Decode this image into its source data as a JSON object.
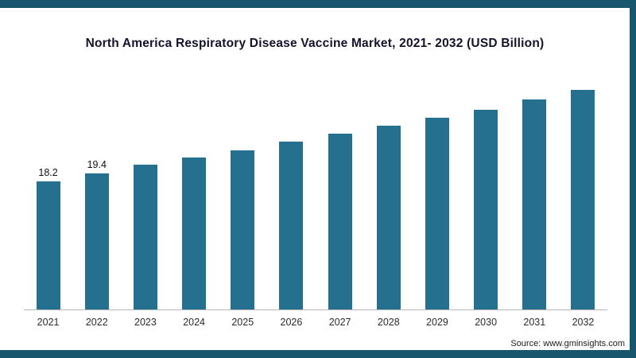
{
  "frame": {
    "border_color": "#17566d"
  },
  "chart_data": {
    "type": "bar",
    "title": "North America Respiratory Disease Vaccine Market, 2021- 2032 (USD Billion)",
    "categories": [
      "2021",
      "2022",
      "2023",
      "2024",
      "2025",
      "2026",
      "2027",
      "2028",
      "2029",
      "2030",
      "2031",
      "2032"
    ],
    "values": [
      18.2,
      19.4,
      20.6,
      21.7,
      22.7,
      23.9,
      25.1,
      26.2,
      27.3,
      28.5,
      29.9,
      31.3
    ],
    "data_labels": [
      "18.2",
      "19.4",
      "",
      "",
      "",
      "",
      "",
      "",
      "",
      "",
      "",
      ""
    ],
    "bar_color": "#26708f",
    "xlabel": "",
    "ylabel": "",
    "ylim": [
      0,
      34
    ],
    "grid": false,
    "legend": false,
    "axis_line_color": "#b9b9b9"
  },
  "source": {
    "label": "Source: www.gminsights.com"
  }
}
